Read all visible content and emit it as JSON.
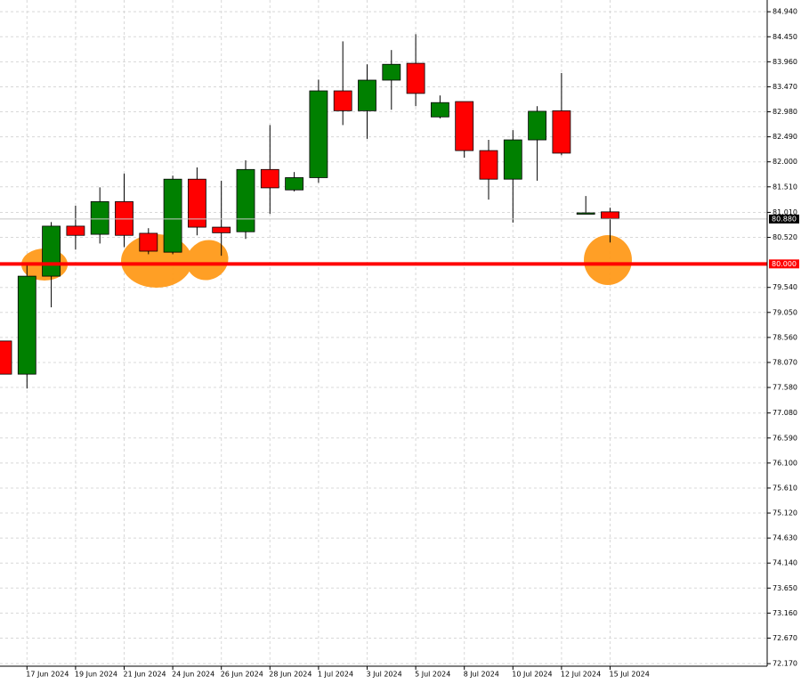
{
  "chart_data": {
    "type": "candlestick",
    "categories": [
      null,
      "17 Jun 2024",
      null,
      "19 Jun 2024",
      null,
      "21 Jun 2024",
      null,
      "24 Jun 2024",
      null,
      "26 Jun 2024",
      null,
      "28 Jun 2024",
      null,
      "1 Jul 2024",
      null,
      "3 Jul 2024",
      null,
      "5 Jul 2024",
      null,
      "8 Jul 2024",
      null,
      "10 Jul 2024",
      null,
      "12 Jul 2024",
      null,
      "15 Jul 2024"
    ],
    "open": [
      78.49,
      77.84,
      79.76,
      80.74,
      80.58,
      81.22,
      80.6,
      80.23,
      81.66,
      80.72,
      80.63,
      81.85,
      81.45,
      81.69,
      83.39,
      83.0,
      83.6,
      83.93,
      82.88,
      83.18,
      82.22,
      81.66,
      82.43,
      83.0,
      80.98,
      81.02
    ],
    "high": [
      78.49,
      79.99,
      80.82,
      81.14,
      81.5,
      81.77,
      80.7,
      81.73,
      81.89,
      81.63,
      82.03,
      82.72,
      81.8,
      83.61,
      84.36,
      83.91,
      84.19,
      84.5,
      83.3,
      83.18,
      82.43,
      82.62,
      83.09,
      83.74,
      81.33,
      81.1
    ],
    "low": [
      77.84,
      77.56,
      79.15,
      80.28,
      80.4,
      80.33,
      80.19,
      80.19,
      80.56,
      80.16,
      80.49,
      80.98,
      81.42,
      81.59,
      82.72,
      82.45,
      83.02,
      83.09,
      82.85,
      82.08,
      81.26,
      80.81,
      81.63,
      82.13,
      80.98,
      80.42
    ],
    "close": [
      77.84,
      79.76,
      80.74,
      80.56,
      81.22,
      80.56,
      80.25,
      81.66,
      80.72,
      80.61,
      81.85,
      81.49,
      81.69,
      83.39,
      83.0,
      83.6,
      83.91,
      83.34,
      83.16,
      82.22,
      81.66,
      82.43,
      82.99,
      82.17,
      81.0,
      80.89
    ],
    "up_color": "#008000",
    "down_color": "#ff0000",
    "ylim": [
      72.12,
      85.17
    ],
    "yticks": [
      {
        "value": 84.94,
        "label": "84.940"
      },
      {
        "value": 84.45,
        "label": "84.450"
      },
      {
        "value": 83.96,
        "label": "83.960"
      },
      {
        "value": 83.47,
        "label": "83.470"
      },
      {
        "value": 82.98,
        "label": "82.980"
      },
      {
        "value": 82.49,
        "label": "82.490"
      },
      {
        "value": 82,
        "label": "82.000"
      },
      {
        "value": 81.51,
        "label": "81.510"
      },
      {
        "value": 81.01,
        "label": "81.010"
      },
      {
        "value": 80.52,
        "label": "80.520"
      },
      {
        "value": 79.54,
        "label": "79.540"
      },
      {
        "value": 79.05,
        "label": "79.050"
      },
      {
        "value": 78.56,
        "label": "78.560"
      },
      {
        "value": 78.07,
        "label": "78.070"
      },
      {
        "value": 77.58,
        "label": "77.580"
      },
      {
        "value": 77.08,
        "label": "77.080"
      },
      {
        "value": 76.59,
        "label": "76.590"
      },
      {
        "value": 76.1,
        "label": "76.100"
      },
      {
        "value": 75.61,
        "label": "75.610"
      },
      {
        "value": 75.12,
        "label": "75.120"
      },
      {
        "value": 74.63,
        "label": "74.630"
      },
      {
        "value": 74.14,
        "label": "74.140"
      },
      {
        "value": 73.65,
        "label": "73.650"
      },
      {
        "value": 73.16,
        "label": "73.160"
      },
      {
        "value": 72.67,
        "label": "72.670"
      },
      {
        "value": 72.17,
        "label": "72.170"
      }
    ],
    "grid": true,
    "price_line": {
      "value": 80.88,
      "label": "80.880"
    },
    "level": {
      "value": 80,
      "label": "80.000",
      "color": "#ff0000"
    }
  }
}
